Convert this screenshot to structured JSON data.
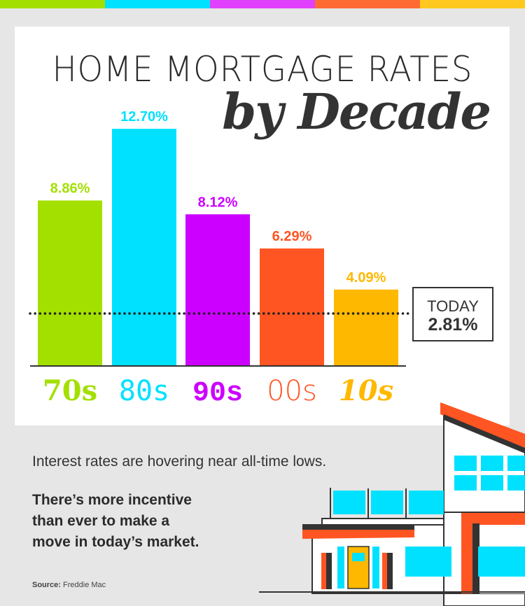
{
  "colors": {
    "70s": "#a3e000",
    "80s": "#00e1ff",
    "90s": "#cc00ff",
    "00s": "#ff5522",
    "10s": "#ffb800",
    "dark": "#333333"
  },
  "title": "HOME MORTGAGE RATES",
  "subtitle": "by Decade",
  "chart_data": {
    "type": "bar",
    "categories": [
      "70s",
      "80s",
      "90s",
      "00s",
      "10s"
    ],
    "values": [
      8.86,
      12.7,
      8.12,
      6.29,
      4.09
    ],
    "value_labels": [
      "8.86%",
      "12.70%",
      "8.12%",
      "6.29%",
      "4.09%"
    ],
    "reference_line": {
      "label": "TODAY",
      "value": 2.81,
      "value_label": "2.81%",
      "style": "dotted"
    },
    "ylim": [
      0,
      12.7
    ],
    "grid": false
  },
  "text": {
    "line1": "Interest rates are hovering near all-time lows.",
    "line2a": "There’s more incentive",
    "line2b": "than ever to make a",
    "line2c": "move in today’s market.",
    "source_label": "Source:",
    "source": "Freddie Mac"
  },
  "icons": [
    "house-illustration"
  ]
}
